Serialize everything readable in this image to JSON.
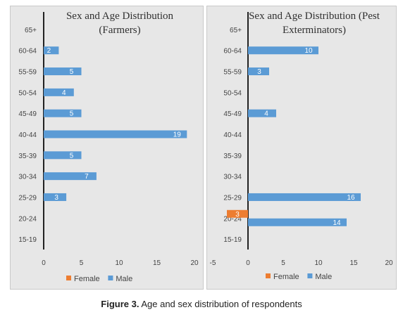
{
  "caption": {
    "label": "Figure 3.",
    "text": "Age and sex distribution of respondents"
  },
  "colors": {
    "male": "#5b9bd5",
    "female": "#ed7d31"
  },
  "chart_data": [
    {
      "type": "bar",
      "orientation": "horizontal",
      "title_lines": [
        "Sex and Age Distribution",
        "(Farmers)"
      ],
      "categories": [
        "15-19",
        "20-24",
        "25-29",
        "30-34",
        "35-39",
        "40-44",
        "45-49",
        "50-54",
        "55-59",
        "60-64",
        "65+"
      ],
      "series": [
        {
          "name": "Female",
          "values": [
            0,
            0,
            0,
            0,
            0,
            0,
            0,
            0,
            0,
            0,
            0
          ]
        },
        {
          "name": "Male",
          "values": [
            0,
            0,
            3,
            7,
            5,
            19,
            5,
            4,
            5,
            2,
            0
          ]
        }
      ],
      "xlim": [
        0,
        20
      ],
      "xticks": [
        0,
        5,
        10,
        15,
        20
      ],
      "legend": {
        "position": "bottom",
        "entries": [
          "Female",
          "Male"
        ]
      },
      "grid": false
    },
    {
      "type": "bar",
      "orientation": "horizontal",
      "title_lines": [
        "Sex and Age Distribution (Pest",
        "Exterminators)"
      ],
      "categories": [
        "15-19",
        "20-24",
        "25-29",
        "30-34",
        "35-39",
        "40-44",
        "45-49",
        "50-54",
        "55-59",
        "60-64",
        "65+"
      ],
      "series": [
        {
          "name": "Female",
          "values": [
            0,
            -3,
            0,
            0,
            0,
            0,
            0,
            0,
            0,
            0,
            0
          ],
          "data_labels": [
            "",
            "3",
            "",
            "",
            "",
            "",
            "",
            "",
            "",
            "",
            ""
          ]
        },
        {
          "name": "Male",
          "values": [
            0,
            14,
            16,
            0,
            0,
            0,
            4,
            0,
            3,
            10,
            0
          ]
        }
      ],
      "xlim": [
        -5,
        20
      ],
      "xticks": [
        -5,
        0,
        5,
        10,
        15,
        20
      ],
      "legend": {
        "position": "bottom",
        "entries": [
          "Female",
          "Male"
        ]
      },
      "grid": false
    }
  ]
}
